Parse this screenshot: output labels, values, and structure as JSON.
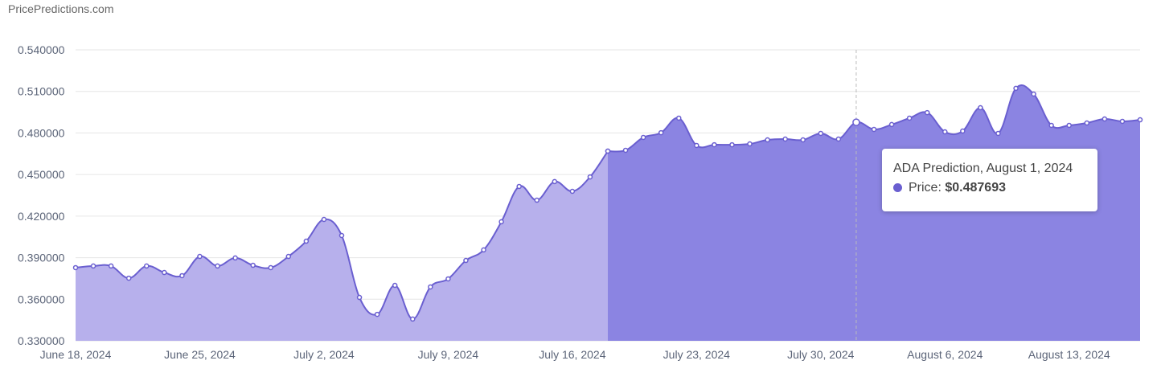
{
  "chart_data": {
    "type": "area",
    "source": "PricePredictions.com",
    "x": [
      "June 18, 2024",
      "June 19, 2024",
      "June 20, 2024",
      "June 21, 2024",
      "June 22, 2024",
      "June 23, 2024",
      "June 24, 2024",
      "June 25, 2024",
      "June 26, 2024",
      "June 27, 2024",
      "June 28, 2024",
      "June 29, 2024",
      "June 30, 2024",
      "July 1, 2024",
      "July 2, 2024",
      "July 3, 2024",
      "July 4, 2024",
      "July 5, 2024",
      "July 6, 2024",
      "July 7, 2024",
      "July 8, 2024",
      "July 9, 2024",
      "July 10, 2024",
      "July 11, 2024",
      "July 12, 2024",
      "July 13, 2024",
      "July 14, 2024",
      "July 15, 2024",
      "July 16, 2024",
      "July 17, 2024",
      "July 18, 2024",
      "July 19, 2024",
      "July 20, 2024",
      "July 21, 2024",
      "July 22, 2024",
      "July 23, 2024",
      "July 24, 2024",
      "July 25, 2024",
      "July 26, 2024",
      "July 27, 2024",
      "July 28, 2024",
      "July 29, 2024",
      "July 30, 2024",
      "July 31, 2024",
      "August 1, 2024",
      "August 2, 2024",
      "August 3, 2024",
      "August 4, 2024",
      "August 5, 2024",
      "August 6, 2024",
      "August 7, 2024",
      "August 8, 2024",
      "August 9, 2024",
      "August 10, 2024",
      "August 11, 2024",
      "August 12, 2024",
      "August 13, 2024",
      "August 14, 2024",
      "August 15, 2024",
      "August 16, 2024",
      "August 17, 2024"
    ],
    "xticks": [
      "June 18, 2024",
      "June 25, 2024",
      "July 2, 2024",
      "July 9, 2024",
      "July 16, 2024",
      "July 23, 2024",
      "July 30, 2024",
      "August 6, 2024",
      "August 13, 2024"
    ],
    "series": [
      {
        "color": "#b7b0ec",
        "values": [
          0.3828,
          0.384,
          0.384,
          0.3752,
          0.384,
          0.3793,
          0.377,
          0.3909,
          0.384,
          0.3898,
          0.3845,
          0.3828,
          0.3909,
          0.4019,
          0.4176,
          0.406,
          0.3613,
          0.3491,
          0.37,
          0.3457,
          0.3689,
          0.3747,
          0.388,
          0.3956,
          0.4159,
          0.4414,
          0.4315,
          0.4449,
          0.4379,
          0.4483,
          0.4669,
          null,
          null,
          null,
          null,
          null,
          null,
          null,
          null,
          null,
          null,
          null,
          null,
          null,
          null,
          null,
          null,
          null,
          null,
          null,
          null,
          null,
          null,
          null,
          null,
          null,
          null,
          null,
          null,
          null,
          null
        ]
      },
      {
        "name": "ADA Prediction",
        "color": "#8b84e2",
        "values": [
          null,
          null,
          null,
          null,
          null,
          null,
          null,
          null,
          null,
          null,
          null,
          null,
          null,
          null,
          null,
          null,
          null,
          null,
          null,
          null,
          null,
          null,
          null,
          null,
          null,
          null,
          null,
          null,
          null,
          null,
          0.4669,
          0.4675,
          0.4768,
          0.4802,
          0.4907,
          0.471,
          0.4715,
          0.4715,
          0.4721,
          0.475,
          0.4756,
          0.475,
          0.4797,
          0.4756,
          0.487693,
          0.4826,
          0.4861,
          0.4907,
          0.4947,
          0.4808,
          0.4814,
          0.4982,
          0.4797,
          0.5122,
          0.5081,
          0.4855,
          0.4855,
          0.4872,
          0.4901,
          0.4884,
          0.4895
        ]
      }
    ],
    "line_color": "#6a5fd0",
    "ylim": [
      0.33,
      0.54
    ],
    "yticks": [
      {
        "value": 0.33,
        "label": "0.330000"
      },
      {
        "value": 0.36,
        "label": "0.360000"
      },
      {
        "value": 0.39,
        "label": "0.390000"
      },
      {
        "value": 0.42,
        "label": "0.420000"
      },
      {
        "value": 0.45,
        "label": "0.450000"
      },
      {
        "value": 0.48,
        "label": "0.480000"
      },
      {
        "value": 0.51,
        "label": "0.510000"
      },
      {
        "value": 0.54,
        "label": "0.540000"
      }
    ],
    "grid": true,
    "tooltip": {
      "title": "ADA Prediction, August 1, 2024",
      "label": "Price:",
      "value_label": "$0.487693"
    }
  }
}
